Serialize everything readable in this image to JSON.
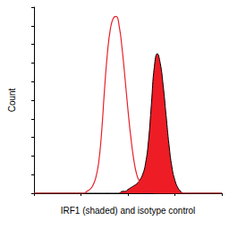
{
  "chart_data": {
    "type": "line",
    "x_label": "IRF1 (shaded) and isotype control",
    "y_label": "Count",
    "x": [
      0,
      64,
      68,
      72,
      76,
      80,
      84,
      88,
      92,
      96,
      100,
      104,
      108,
      112,
      116,
      120,
      124,
      128,
      132,
      136,
      140,
      144,
      148,
      152,
      156,
      160,
      164,
      168,
      172,
      176,
      180,
      184,
      188,
      192,
      196,
      200,
      204,
      208,
      212,
      216,
      256
    ],
    "series": [
      {
        "type": "line",
        "color": "#e8202a",
        "values": [
          0,
          0,
          0,
          1,
          2,
          4,
          8,
          16,
          32,
          55,
          75,
          88,
          94,
          95,
          90,
          78,
          62,
          45,
          30,
          18,
          10,
          6,
          3,
          2,
          1,
          1,
          0,
          0,
          0,
          0,
          0,
          0,
          0,
          0,
          0,
          0,
          0,
          0,
          0,
          0,
          0
        ]
      },
      {
        "type": "area",
        "color": "#ee1c25",
        "values": [
          0,
          0,
          0,
          0,
          0,
          0,
          0,
          0,
          0,
          0,
          0,
          0,
          0,
          0,
          0,
          1,
          1,
          2,
          3,
          4,
          5,
          7,
          10,
          16,
          28,
          48,
          68,
          75,
          70,
          58,
          42,
          26,
          14,
          7,
          3,
          1,
          0,
          0,
          0,
          0,
          0
        ]
      }
    ],
    "xlim": [
      0,
      256
    ],
    "xticks": [
      0,
      64,
      128,
      192,
      256
    ],
    "ylim": [
      0,
      100
    ],
    "yticks": [
      0,
      10,
      20,
      30,
      40,
      50,
      60,
      70,
      80,
      90,
      100
    ],
    "grid": false,
    "tick_labels": false
  }
}
